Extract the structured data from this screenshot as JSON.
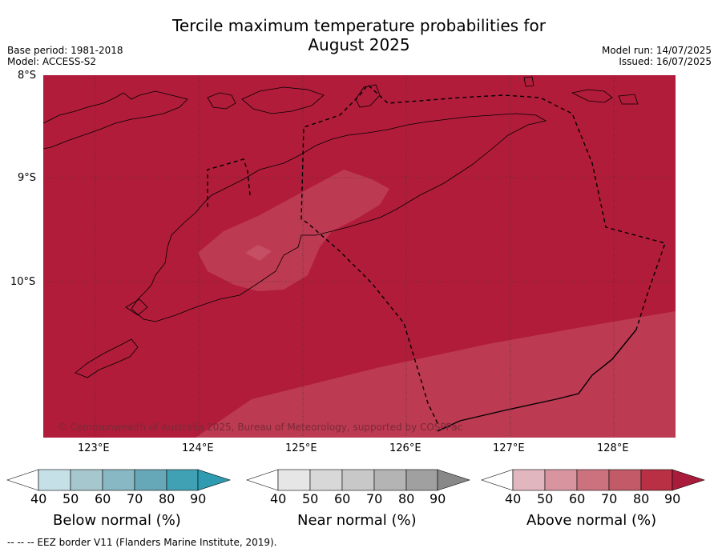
{
  "title_line1": "Tercile maximum temperature probabilities for",
  "title_line2": "August 2025",
  "base_period": "Base period: 1981-2018",
  "model": "Model: ACCESS-S2",
  "model_run": "Model run: 14/07/2025",
  "issued": "Issued: 16/07/2025",
  "lat_labels": [
    "8°S",
    "9°S",
    "10°S"
  ],
  "lon_labels": [
    "123°E",
    "124°E",
    "125°E",
    "126°E",
    "127°E",
    "128°E"
  ],
  "copyright": "© Commonwealth of Australia 2025, Bureau of Meteorology, supported by COSPPac",
  "legends": [
    {
      "title": "Below normal (%)",
      "ticks": [
        "40",
        "50",
        "60",
        "70",
        "80",
        "90"
      ],
      "colors": [
        "#ffffff",
        "#c6e0e7",
        "#a6c7cd",
        "#88b8c3",
        "#66a8b8",
        "#41a1b4",
        "#2e9bb0"
      ]
    },
    {
      "title": "Near normal (%)",
      "ticks": [
        "40",
        "50",
        "60",
        "70",
        "80",
        "90"
      ],
      "colors": [
        "#ffffff",
        "#e6e6e6",
        "#d8d8d8",
        "#c8c8c8",
        "#b4b4b4",
        "#a0a0a0",
        "#888888"
      ]
    },
    {
      "title": "Above normal (%)",
      "ticks": [
        "40",
        "50",
        "60",
        "70",
        "80",
        "90"
      ],
      "colors": [
        "#ffffff",
        "#e2b6bf",
        "#d8959f",
        "#cc727e",
        "#c35a68",
        "#b93045",
        "#a91b3a"
      ]
    }
  ],
  "footer": "--  --  -- EEZ border V11 (Flanders Marine Institute, 2019).",
  "map_colors": {
    "high": "#b11c3a",
    "mid": "#bc3a52",
    "light": "#c55065"
  }
}
